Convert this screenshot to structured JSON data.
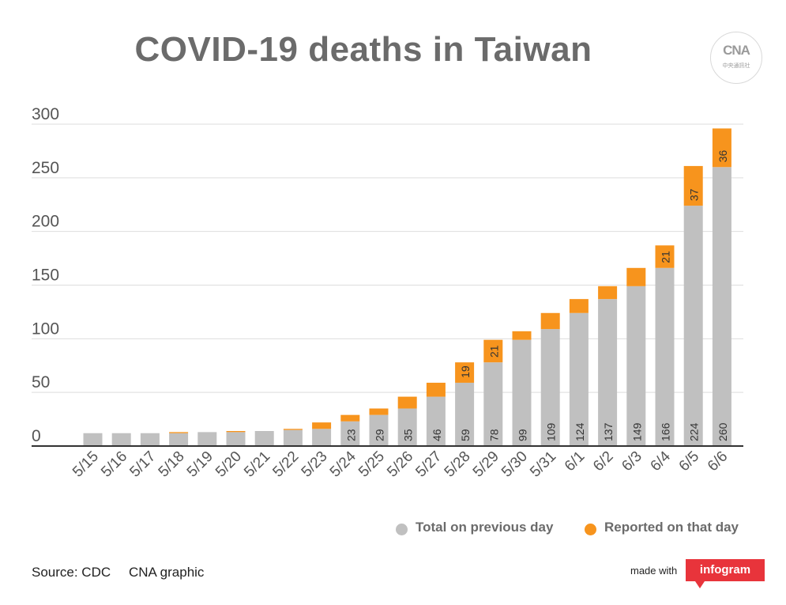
{
  "title": "COVID-19 deaths in Taiwan",
  "logo": {
    "text": "CNA",
    "subtext": "中央通訊社"
  },
  "legend": {
    "items": [
      {
        "label": "Total on previous day",
        "color": "#c0c0c0"
      },
      {
        "label": "Reported on that day",
        "color": "#f7941d"
      }
    ]
  },
  "footer": {
    "source": "Source: CDC",
    "credit": "CNA graphic",
    "made_with": "made with",
    "brand": "infogram"
  },
  "colors": {
    "previous": "#c0c0c0",
    "reported": "#f7941d",
    "grid": "#dddddd",
    "axis": "#333333",
    "tick_text": "#555555"
  },
  "chart_data": {
    "type": "bar",
    "stacked": true,
    "title": "COVID-19 deaths in Taiwan",
    "xlabel": "",
    "ylabel": "",
    "ylim": [
      0,
      300
    ],
    "yticks": [
      0,
      50,
      100,
      150,
      200,
      250,
      300
    ],
    "grid": true,
    "legend_position": "bottom-right",
    "categories": [
      "5/15",
      "5/16",
      "5/17",
      "5/18",
      "5/19",
      "5/20",
      "5/21",
      "5/22",
      "5/23",
      "5/24",
      "5/25",
      "5/26",
      "5/27",
      "5/28",
      "5/29",
      "5/30",
      "5/31",
      "6/1",
      "6/2",
      "6/3",
      "6/4",
      "6/5",
      "6/6"
    ],
    "series": [
      {
        "name": "Total on previous day",
        "values": [
          12,
          12,
          12,
          12,
          13,
          13,
          14,
          15,
          16,
          23,
          29,
          35,
          46,
          59,
          78,
          99,
          109,
          124,
          137,
          149,
          166,
          224,
          260
        ]
      },
      {
        "name": "Reported on that day",
        "values": [
          0,
          0,
          0,
          1,
          0,
          1,
          0,
          1,
          6,
          6,
          6,
          11,
          13,
          19,
          21,
          8,
          15,
          13,
          12,
          17,
          21,
          37,
          36
        ]
      }
    ],
    "value_labels": {
      "previous": [
        "",
        "",
        "",
        "",
        "",
        "",
        "",
        "",
        "",
        "23",
        "29",
        "35",
        "46",
        "59",
        "78",
        "99",
        "109",
        "124",
        "137",
        "149",
        "166",
        "224",
        "260"
      ],
      "reported": [
        "",
        "",
        "",
        "",
        "",
        "",
        "",
        "",
        "",
        "",
        "",
        "",
        "",
        "19",
        "21",
        "",
        "",
        "",
        "",
        "",
        "21",
        "37",
        "36"
      ]
    }
  }
}
